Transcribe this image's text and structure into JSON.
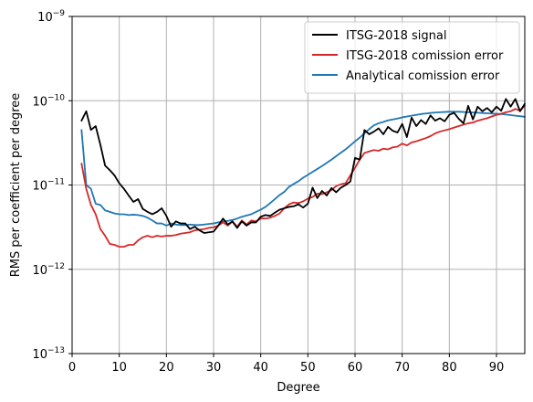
{
  "chart_data": {
    "type": "line",
    "title": "",
    "xlabel": "Degree",
    "ylabel": "RMS per coefficient per degree",
    "xlim": [
      0,
      96
    ],
    "ylim": [
      1e-13,
      1e-09
    ],
    "yscale": "log",
    "grid": true,
    "legend_position": "top-right",
    "xticks": [
      0,
      10,
      20,
      30,
      40,
      50,
      60,
      70,
      80,
      90
    ],
    "xtick_labels": [
      "0",
      "10",
      "20",
      "30",
      "40",
      "50",
      "60",
      "70",
      "80",
      "90"
    ],
    "yticks": [
      1e-13,
      1e-12,
      1e-11,
      1e-10,
      1e-09
    ],
    "ytick_labels": [
      {
        "base": "10",
        "exp": "−13"
      },
      {
        "base": "10",
        "exp": "−12"
      },
      {
        "base": "10",
        "exp": "−11"
      },
      {
        "base": "10",
        "exp": "−10"
      },
      {
        "base": "10",
        "exp": "−9"
      }
    ],
    "series": [
      {
        "name": "ITSG-2018 signal",
        "color": "#000000",
        "x": [
          2,
          3,
          4,
          5,
          6,
          7,
          8,
          9,
          10,
          11,
          12,
          13,
          14,
          15,
          16,
          17,
          18,
          19,
          20,
          21,
          22,
          23,
          24,
          25,
          26,
          27,
          28,
          29,
          30,
          31,
          32,
          33,
          34,
          35,
          36,
          37,
          38,
          39,
          40,
          41,
          42,
          43,
          44,
          45,
          46,
          47,
          48,
          49,
          50,
          51,
          52,
          53,
          54,
          55,
          56,
          57,
          58,
          59,
          60,
          61,
          62,
          63,
          64,
          65,
          66,
          67,
          68,
          69,
          70,
          71,
          72,
          73,
          74,
          75,
          76,
          77,
          78,
          79,
          80,
          81,
          82,
          83,
          84,
          85,
          86,
          87,
          88,
          89,
          90,
          91,
          92,
          93,
          94,
          95,
          96
        ],
        "y": [
          5.8e-11,
          7.5e-11,
          4.5e-11,
          5e-11,
          3e-11,
          1.7e-11,
          1.5e-11,
          1.3e-11,
          1.05e-11,
          9e-12,
          7.5e-12,
          6.3e-12,
          6.8e-12,
          5.2e-12,
          4.8e-12,
          4.5e-12,
          4.8e-12,
          5.3e-12,
          4.3e-12,
          3.2e-12,
          3.7e-12,
          3.5e-12,
          3.5e-12,
          3e-12,
          3.2e-12,
          2.9e-12,
          2.7e-12,
          2.75e-12,
          2.8e-12,
          3.3e-12,
          4e-12,
          3.4e-12,
          3.7e-12,
          3.1e-12,
          3.7e-12,
          3.3e-12,
          3.6e-12,
          3.6e-12,
          4.2e-12,
          4.4e-12,
          4.3e-12,
          4.7e-12,
          5.1e-12,
          5.3e-12,
          5.5e-12,
          5.6e-12,
          5.9e-12,
          5.4e-12,
          6e-12,
          9.3e-12,
          7e-12,
          8.5e-12,
          7.5e-12,
          9.2e-12,
          8.2e-12,
          9.3e-12,
          1e-11,
          1.1e-11,
          2.1e-11,
          2e-11,
          4.5e-11,
          4e-11,
          4.3e-11,
          4.7e-11,
          4e-11,
          4.9e-11,
          4.4e-11,
          4.2e-11,
          5.3e-11,
          3.7e-11,
          6.3e-11,
          5e-11,
          5.9e-11,
          5.3e-11,
          6.7e-11,
          5.8e-11,
          6.2e-11,
          5.7e-11,
          6.8e-11,
          7.2e-11,
          6.1e-11,
          5.4e-11,
          8.7e-11,
          6e-11,
          8.5e-11,
          7.5e-11,
          8.2e-11,
          7.3e-11,
          8.5e-11,
          7.6e-11,
          1.05e-10,
          8.5e-11,
          1.05e-10,
          7.5e-11,
          9.2e-11
        ]
      },
      {
        "name": "ITSG-2018 comission error",
        "color": "#d62728",
        "x": [
          2,
          3,
          4,
          5,
          6,
          7,
          8,
          9,
          10,
          11,
          12,
          13,
          14,
          15,
          16,
          17,
          18,
          19,
          20,
          21,
          22,
          23,
          24,
          25,
          26,
          27,
          28,
          29,
          30,
          31,
          32,
          33,
          34,
          35,
          36,
          37,
          38,
          39,
          40,
          41,
          42,
          43,
          44,
          45,
          46,
          47,
          48,
          49,
          50,
          51,
          52,
          53,
          54,
          55,
          56,
          57,
          58,
          59,
          60,
          61,
          62,
          63,
          64,
          65,
          66,
          67,
          68,
          69,
          70,
          71,
          72,
          73,
          74,
          75,
          76,
          77,
          78,
          79,
          80,
          81,
          82,
          83,
          84,
          85,
          86,
          87,
          88,
          89,
          90,
          91,
          92,
          93,
          94,
          95,
          96
        ],
        "y": [
          1.8e-11,
          9e-12,
          5.8e-12,
          4.5e-12,
          3e-12,
          2.5e-12,
          2e-12,
          1.95e-12,
          1.85e-12,
          1.85e-12,
          1.95e-12,
          1.95e-12,
          2.2e-12,
          2.4e-12,
          2.5e-12,
          2.4e-12,
          2.5e-12,
          2.45e-12,
          2.5e-12,
          2.5e-12,
          2.55e-12,
          2.65e-12,
          2.7e-12,
          2.75e-12,
          2.9e-12,
          2.95e-12,
          3e-12,
          3.1e-12,
          3.15e-12,
          3.3e-12,
          3.6e-12,
          3.3e-12,
          3.7e-12,
          3.2e-12,
          3.8e-12,
          3.4e-12,
          3.8e-12,
          3.7e-12,
          4e-12,
          4e-12,
          4.1e-12,
          4.3e-12,
          4.6e-12,
          5.3e-12,
          5.9e-12,
          6.2e-12,
          6.1e-12,
          6.4e-12,
          6.9e-12,
          7.2e-12,
          7.9e-12,
          7.8e-12,
          8.2e-12,
          8.7e-12,
          9.7e-12,
          1.02e-11,
          1.05e-11,
          1.3e-11,
          1.6e-11,
          2e-11,
          2.4e-11,
          2.5e-11,
          2.6e-11,
          2.55e-11,
          2.7e-11,
          2.65e-11,
          2.8e-11,
          2.85e-11,
          3.1e-11,
          2.95e-11,
          3.2e-11,
          3.3e-11,
          3.45e-11,
          3.6e-11,
          3.8e-11,
          4.1e-11,
          4.3e-11,
          4.45e-11,
          4.6e-11,
          4.8e-11,
          5e-11,
          5.2e-11,
          5.4e-11,
          5.5e-11,
          5.8e-11,
          6e-11,
          6.2e-11,
          6.5e-11,
          6.8e-11,
          7e-11,
          7.3e-11,
          7.5e-11,
          8e-11,
          7.6e-11,
          8.8e-11
        ]
      },
      {
        "name": "Analytical comission error",
        "color": "#1f77b4",
        "x": [
          2,
          3,
          4,
          5,
          6,
          7,
          8,
          9,
          10,
          11,
          12,
          13,
          14,
          15,
          16,
          17,
          18,
          19,
          20,
          21,
          22,
          23,
          24,
          25,
          26,
          27,
          28,
          29,
          30,
          31,
          32,
          33,
          34,
          35,
          36,
          37,
          38,
          39,
          40,
          41,
          42,
          43,
          44,
          45,
          46,
          47,
          48,
          49,
          50,
          51,
          52,
          53,
          54,
          55,
          56,
          57,
          58,
          59,
          60,
          61,
          62,
          63,
          64,
          65,
          66,
          67,
          68,
          69,
          70,
          71,
          72,
          73,
          74,
          75,
          76,
          77,
          78,
          79,
          80,
          81,
          82,
          83,
          84,
          85,
          86,
          87,
          88,
          89,
          90,
          91,
          92,
          93,
          94,
          95,
          96
        ],
        "y": [
          4.5e-11,
          1e-11,
          9e-12,
          6e-12,
          5.8e-12,
          5e-12,
          4.8e-12,
          4.6e-12,
          4.5e-12,
          4.5e-12,
          4.4e-12,
          4.45e-12,
          4.4e-12,
          4.3e-12,
          4.1e-12,
          3.8e-12,
          3.5e-12,
          3.5e-12,
          3.3e-12,
          3.5e-12,
          3.4e-12,
          3.35e-12,
          3.35e-12,
          3.4e-12,
          3.35e-12,
          3.35e-12,
          3.4e-12,
          3.45e-12,
          3.5e-12,
          3.6e-12,
          3.7e-12,
          3.75e-12,
          3.85e-12,
          4e-12,
          4.2e-12,
          4.35e-12,
          4.5e-12,
          4.8e-12,
          5.1e-12,
          5.5e-12,
          6.1e-12,
          6.8e-12,
          7.6e-12,
          8.3e-12,
          9.5e-12,
          1.03e-11,
          1.11e-11,
          1.22e-11,
          1.32e-11,
          1.43e-11,
          1.55e-11,
          1.68e-11,
          1.83e-11,
          2e-11,
          2.2e-11,
          2.42e-11,
          2.65e-11,
          2.95e-11,
          3.3e-11,
          3.65e-11,
          4.1e-11,
          4.6e-11,
          5.1e-11,
          5.4e-11,
          5.6e-11,
          5.85e-11,
          6e-11,
          6.15e-11,
          6.35e-11,
          6.5e-11,
          6.65e-11,
          6.8e-11,
          6.95e-11,
          7.05e-11,
          7.15e-11,
          7.25e-11,
          7.3e-11,
          7.35e-11,
          7.4e-11,
          7.4e-11,
          7.4e-11,
          7.35e-11,
          7.3e-11,
          7.25e-11,
          7.2e-11,
          7.15e-11,
          7.1e-11,
          7.05e-11,
          7e-11,
          6.95e-11,
          6.85e-11,
          6.75e-11,
          6.65e-11,
          6.55e-11,
          6.45e-11
        ]
      }
    ]
  }
}
